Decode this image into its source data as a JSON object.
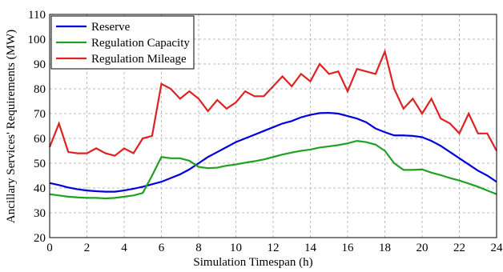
{
  "chart_data": {
    "type": "line",
    "xlabel": "Simulation Timespan (h)",
    "ylabel": "Ancillary Services' Requirements (MW)",
    "x": [
      0,
      0.5,
      1,
      1.5,
      2,
      2.5,
      3,
      3.5,
      4,
      4.5,
      5,
      5.5,
      6,
      6.5,
      7,
      7.5,
      8,
      8.5,
      9,
      9.5,
      10,
      10.5,
      11,
      11.5,
      12,
      12.5,
      13,
      13.5,
      14,
      14.5,
      15,
      15.5,
      16,
      16.5,
      17,
      17.5,
      18,
      18.5,
      19,
      19.5,
      20,
      20.5,
      21,
      21.5,
      22,
      22.5,
      23,
      23.5,
      24
    ],
    "series": [
      {
        "name": "Reserve",
        "color": "#0000dd",
        "values": [
          42,
          41.2,
          40.2,
          39.5,
          39,
          38.7,
          38.5,
          38.5,
          39,
          39.7,
          40.5,
          41.5,
          42.5,
          44,
          45.5,
          47.5,
          50,
          52.5,
          54.5,
          56.5,
          58.5,
          60,
          61.5,
          63,
          64.5,
          66,
          67,
          68.5,
          69.5,
          70.2,
          70.3,
          70,
          69,
          68,
          66.5,
          64,
          62.5,
          61.2,
          61.2,
          61,
          60.5,
          59,
          57,
          54.5,
          52,
          49.5,
          47,
          45,
          42.5
        ]
      },
      {
        "name": "Regulation Capacity",
        "color": "#22a022",
        "values": [
          37.5,
          37,
          36.5,
          36.2,
          36,
          36,
          35.8,
          36,
          36.5,
          37,
          38,
          45,
          52.5,
          52,
          52,
          51,
          48.5,
          48,
          48.2,
          49,
          49.5,
          50.2,
          50.8,
          51.5,
          52.5,
          53.5,
          54.3,
          55,
          55.5,
          56.3,
          56.8,
          57.3,
          58,
          59,
          58.5,
          57.5,
          55,
          50,
          47.3,
          47.3,
          47.5,
          46.2,
          45.2,
          44,
          43,
          41.8,
          40.5,
          39,
          37.5
        ]
      },
      {
        "name": "Regulation Mileage",
        "color": "#dd2222",
        "values": [
          56.5,
          66,
          54.5,
          54,
          54,
          56,
          54,
          53,
          56,
          54,
          60,
          61,
          82,
          80,
          76,
          79,
          76,
          71,
          75.5,
          72,
          74.5,
          79,
          77,
          77,
          81,
          85,
          81,
          86,
          83,
          90,
          86,
          87,
          79,
          88,
          87,
          86,
          95,
          80,
          72,
          76,
          70,
          76,
          68,
          66,
          62,
          70,
          62,
          62,
          55
        ]
      }
    ],
    "xlim": [
      0,
      24
    ],
    "xticks": [
      0,
      2,
      4,
      6,
      8,
      10,
      12,
      14,
      16,
      18,
      20,
      22,
      24
    ],
    "ylim": [
      20,
      110
    ],
    "yticks": [
      20,
      30,
      40,
      50,
      60,
      70,
      80,
      90,
      100,
      110
    ],
    "grid": true,
    "legend": "upper left"
  }
}
